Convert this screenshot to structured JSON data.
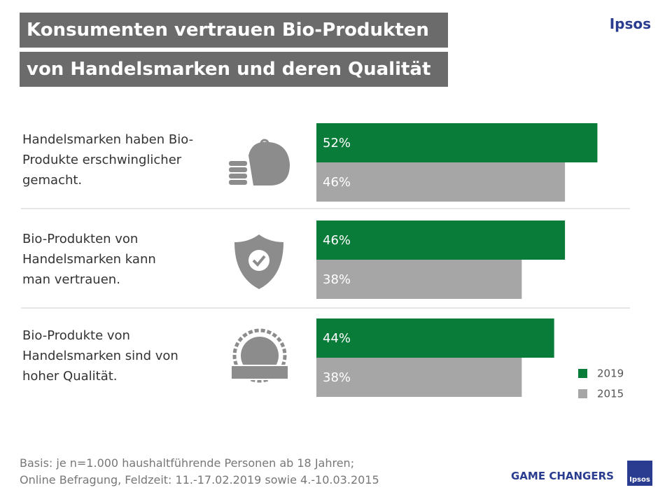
{
  "header": {
    "title_lines": [
      "Konsumenten vertrauen Bio-Produkten",
      "von Handelsmarken und deren Qualität"
    ],
    "logo": "Ipsos"
  },
  "chart_data": {
    "type": "bar",
    "orientation": "horizontal",
    "categories": [
      "Handelsmarken haben Bio-Produkte erschwinglicher gemacht.",
      "Bio-Produkten von Handelsmarken kann man vertrauen.",
      "Bio-Produkte von Handelsmarken sind von hoher Qualität."
    ],
    "series": [
      {
        "name": "2019",
        "color": "#0a7c3a",
        "values": [
          52,
          46,
          44
        ],
        "value_labels": [
          "52%",
          "46%",
          "44%"
        ]
      },
      {
        "name": "2015",
        "color": "#a6a6a6",
        "values": [
          46,
          38,
          38
        ],
        "value_labels": [
          "46%",
          "38%",
          "38%"
        ]
      }
    ],
    "legend": "bottom-right"
  },
  "footer": {
    "note_lines": [
      "Basis: je n=1.000 haushaltführende  Personen ab 18 Jahren;",
      "Online Befragung, Feldzeit: 11.-17.02.2019 sowie 4.-10.03.2015"
    ],
    "slogan": "GAME CHANGERS",
    "badge": "Ipsos"
  }
}
